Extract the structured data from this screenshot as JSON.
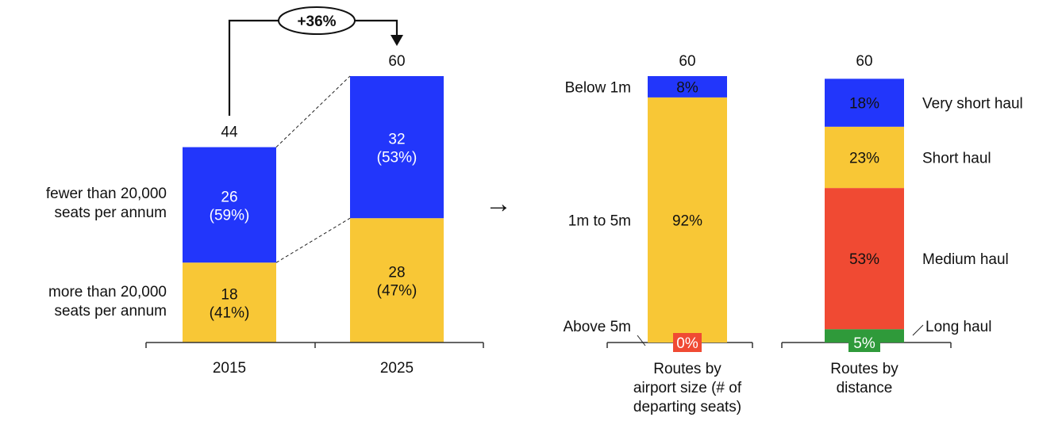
{
  "colors": {
    "blue": "#2236fb",
    "yellow": "#f8c736",
    "red": "#f04a33",
    "green": "#2f9a3a",
    "text_dark": "#111111",
    "text_light": "#ffffff"
  },
  "chart_data": [
    {
      "type": "bar",
      "stacked": true,
      "categories": [
        "2015",
        "2025"
      ],
      "totals": [
        "44",
        "60"
      ],
      "series": [
        {
          "name": "more than 20,000 seats per annum",
          "values": [
            18,
            28
          ],
          "labels": [
            [
              "18",
              "(41%)"
            ],
            [
              "28",
              "(47%)"
            ]
          ],
          "color": "#f8c736"
        },
        {
          "name": "fewer than 20,000 seats per annum",
          "values": [
            26,
            32
          ],
          "labels": [
            [
              "26",
              "(59%)"
            ],
            [
              "32",
              "(53%)"
            ]
          ],
          "color": "#2236fb"
        }
      ],
      "series_labels": {
        "upper": [
          "fewer than 20,000",
          "seats per annum"
        ],
        "lower": [
          "more than 20,000",
          "seats per annum"
        ]
      },
      "growth_annotation": "+36%",
      "ylim": [
        0,
        60
      ]
    },
    {
      "type": "bar",
      "stacked": true,
      "normalized": true,
      "arrow": "→",
      "bars": [
        {
          "category": [
            "Routes by",
            "airport size (# of",
            "departing seats)"
          ],
          "total": "60",
          "segments": [
            {
              "name": "Above 5m",
              "value": 0,
              "label": "0%",
              "color": "#f04a33"
            },
            {
              "name": "1m to 5m",
              "value": 92,
              "label": "92%",
              "color": "#f8c736"
            },
            {
              "name": "Below 1m",
              "value": 8,
              "label": "8%",
              "color": "#2236fb"
            }
          ]
        },
        {
          "category": [
            "Routes by",
            "distance"
          ],
          "total": "60",
          "segments": [
            {
              "name": "Long haul",
              "value": 5,
              "label": "5%",
              "color": "#2f9a3a"
            },
            {
              "name": "Medium haul",
              "value": 53,
              "label": "53%",
              "color": "#f04a33"
            },
            {
              "name": "Short haul",
              "value": 23,
              "label": "23%",
              "color": "#f8c736"
            },
            {
              "name": "Very short haul",
              "value": 18,
              "label": "18%",
              "color": "#2236fb"
            }
          ]
        }
      ],
      "ylim": [
        0,
        100
      ]
    }
  ]
}
